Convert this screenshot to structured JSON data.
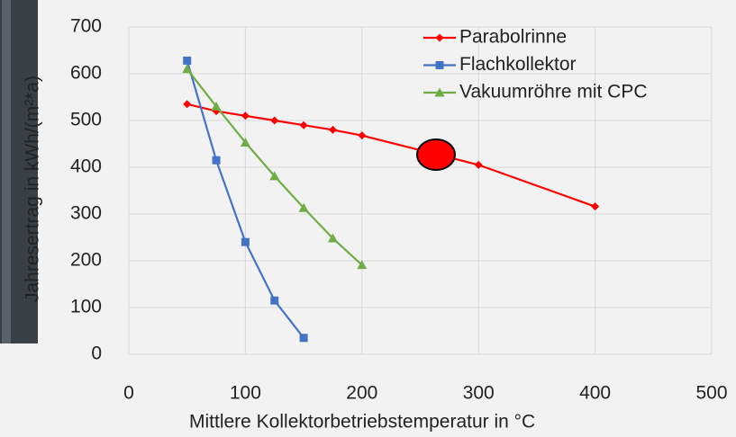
{
  "chart_data": {
    "type": "line",
    "xlabel": "Mittlere Kollektorbetriebstemperatur in °C",
    "ylabel": "Jahresertrag in kWh/(m²*a)",
    "xlim": [
      0,
      500
    ],
    "xticks": [
      0,
      100,
      200,
      300,
      400,
      500
    ],
    "ylim": [
      0,
      700
    ],
    "yticks": [
      0,
      100,
      200,
      300,
      400,
      500,
      600,
      700
    ],
    "grid": true,
    "legend": "top-right",
    "series": [
      {
        "name": "Parabolrinne",
        "color": "#ff0000",
        "marker": "diamond",
        "x": [
          50,
          75,
          100,
          125,
          150,
          175,
          200,
          300,
          400
        ],
        "values": [
          535,
          520,
          510,
          500,
          490,
          480,
          468,
          405,
          316
        ]
      },
      {
        "name": "Flachkollektor",
        "color": "#4472c4",
        "marker": "square",
        "x": [
          50,
          75,
          100,
          125,
          150
        ],
        "values": [
          628,
          415,
          240,
          115,
          35
        ]
      },
      {
        "name": "Vakuumröhre mit CPC",
        "color": "#70ad47",
        "marker": "triangle",
        "x": [
          50,
          75,
          100,
          125,
          150,
          175,
          200
        ],
        "values": [
          610,
          530,
          453,
          381,
          313,
          248,
          191
        ]
      }
    ]
  }
}
